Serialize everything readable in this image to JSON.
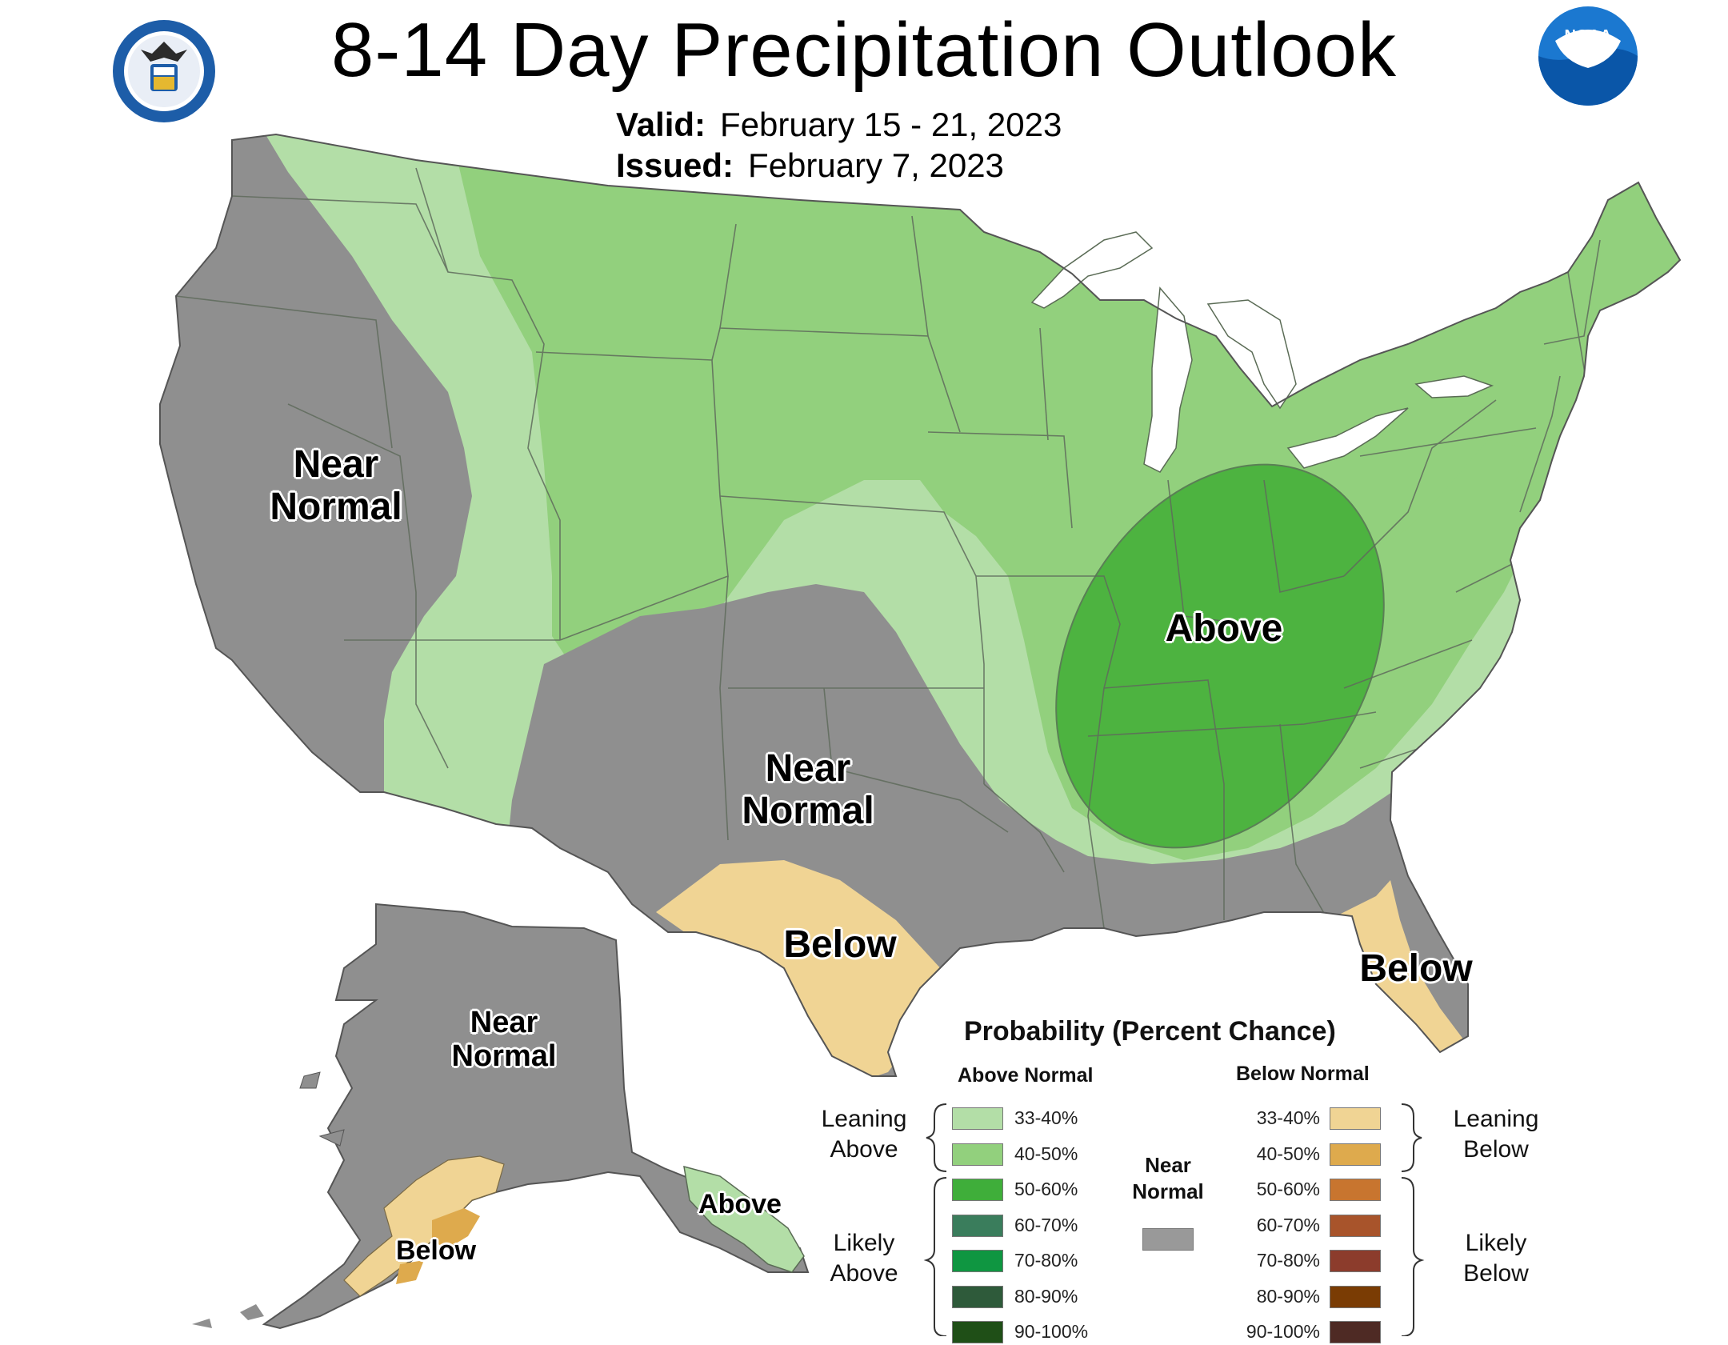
{
  "header": {
    "title": "8-14 Day Precipitation Outlook",
    "valid_label": "Valid:",
    "valid_value": "February 15 - 21, 2023",
    "issued_label": "Issued:",
    "issued_value": "February 7, 2023"
  },
  "logos": {
    "left": "department-of-commerce-seal",
    "right": "noaa-logo",
    "right_text": "NOAA"
  },
  "map": {
    "labels": {
      "west_near_normal_1": "Near",
      "west_near_normal_2": "Normal",
      "south_near_normal_1": "Near",
      "south_near_normal_2": "Normal",
      "above": "Above",
      "texas_below": "Below",
      "florida_below": "Below",
      "alaska_near_1": "Near",
      "alaska_near_2": "Normal",
      "alaska_above": "Above",
      "alaska_below": "Below"
    },
    "colors": {
      "near_normal": "#8f8f8f",
      "above_33_40": "#b3dea7",
      "above_40_50": "#92d07d",
      "above_50_60": "#4db340",
      "below_33_40": "#f0d494",
      "below_40_50": "#deaa4d",
      "water": "#ffffff",
      "border": "#555555"
    }
  },
  "legend": {
    "title": "Probability (Percent Chance)",
    "above_header": "Above Normal",
    "below_header": "Below Normal",
    "near_label_1": "Near",
    "near_label_2": "Normal",
    "near_color": "#999999",
    "leaning_above_1": "Leaning",
    "leaning_above_2": "Above",
    "likely_above_1": "Likely",
    "likely_above_2": "Above",
    "leaning_below_1": "Leaning",
    "leaning_below_2": "Below",
    "likely_below_1": "Likely",
    "likely_below_2": "Below",
    "above": [
      {
        "label": "33-40%",
        "color": "#b3dea7"
      },
      {
        "label": "40-50%",
        "color": "#92d07d"
      },
      {
        "label": "50-60%",
        "color": "#3fae3a"
      },
      {
        "label": "60-70%",
        "color": "#3a7d5c"
      },
      {
        "label": "70-80%",
        "color": "#0f9641"
      },
      {
        "label": "80-90%",
        "color": "#2e5a3a"
      },
      {
        "label": "90-100%",
        "color": "#1f4f17"
      }
    ],
    "below": [
      {
        "label": "33-40%",
        "color": "#f0d494"
      },
      {
        "label": "40-50%",
        "color": "#deaa4d"
      },
      {
        "label": "50-60%",
        "color": "#c8752f"
      },
      {
        "label": "60-70%",
        "color": "#a8542b"
      },
      {
        "label": "70-80%",
        "color": "#8c3c2c"
      },
      {
        "label": "80-90%",
        "color": "#7a3c04"
      },
      {
        "label": "90-100%",
        "color": "#4e2a24"
      }
    ]
  }
}
